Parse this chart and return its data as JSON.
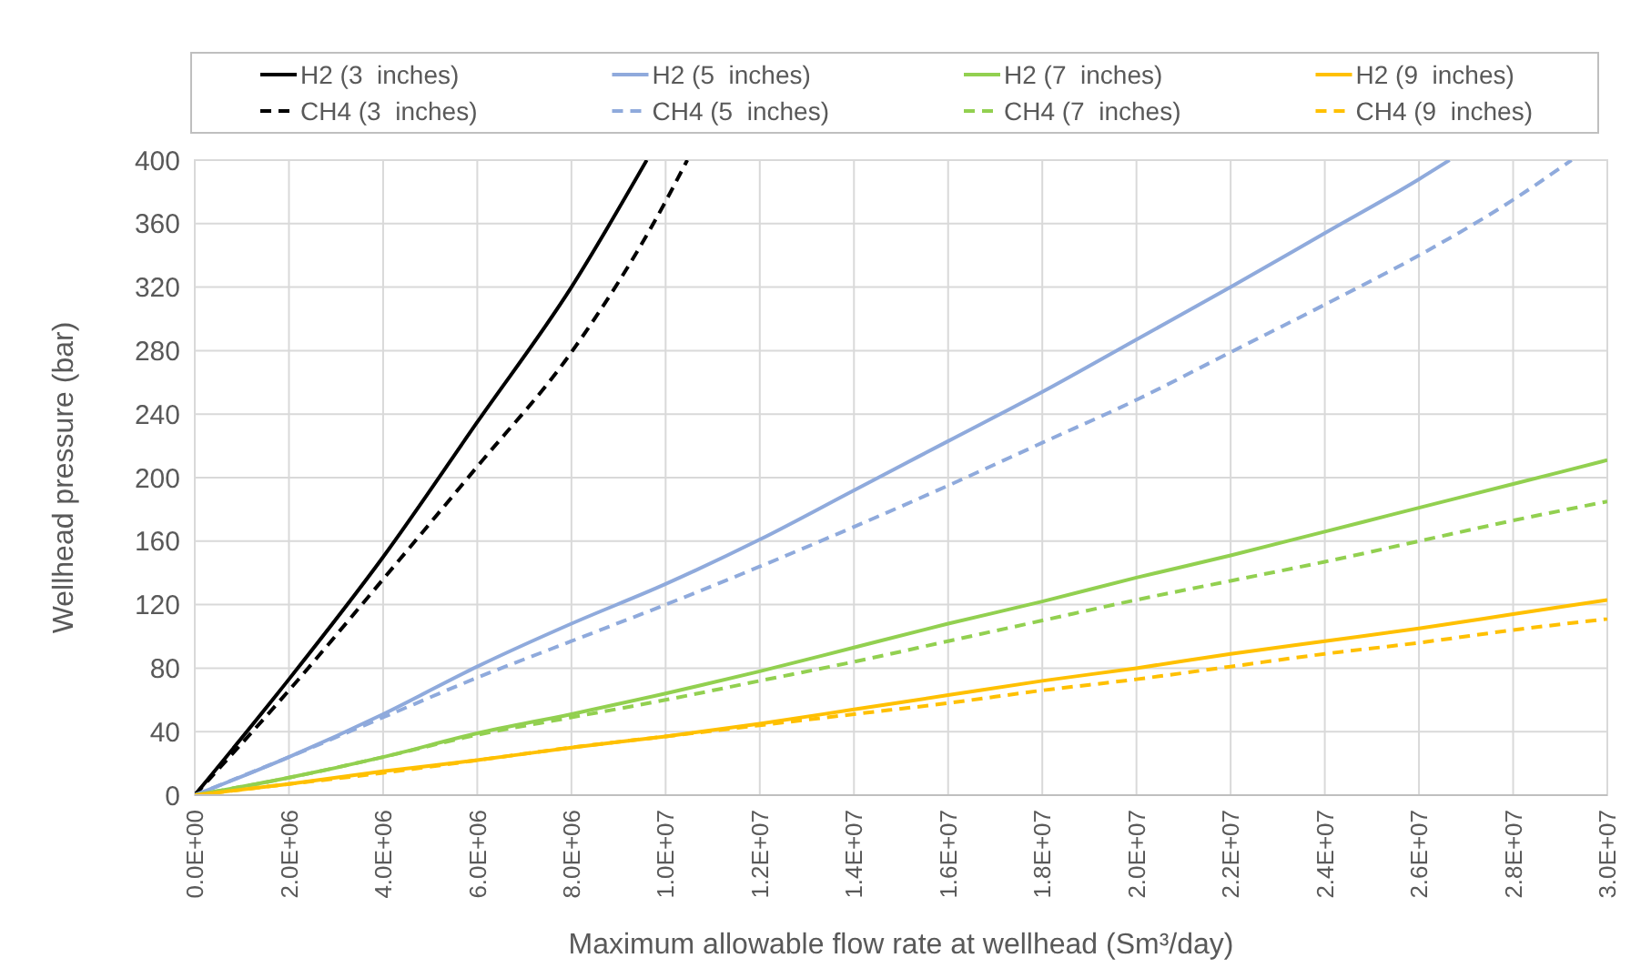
{
  "chart_data": {
    "type": "line",
    "xlabel": "Maximum allowable flow rate at wellhead (Sm³/day)",
    "ylabel": "Wellhead pressure (bar)",
    "xlim": [
      0,
      30000000
    ],
    "ylim": [
      0,
      400
    ],
    "xticks": [
      {
        "value": 0,
        "label": "0.0E+00"
      },
      {
        "value": 2000000,
        "label": "2.0E+06"
      },
      {
        "value": 4000000,
        "label": "4.0E+06"
      },
      {
        "value": 6000000,
        "label": "6.0E+06"
      },
      {
        "value": 8000000,
        "label": "8.0E+06"
      },
      {
        "value": 10000000,
        "label": "1.0E+07"
      },
      {
        "value": 12000000,
        "label": "1.2E+07"
      },
      {
        "value": 14000000,
        "label": "1.4E+07"
      },
      {
        "value": 16000000,
        "label": "1.6E+07"
      },
      {
        "value": 18000000,
        "label": "1.8E+07"
      },
      {
        "value": 20000000,
        "label": "2.0E+07"
      },
      {
        "value": 22000000,
        "label": "2.2E+07"
      },
      {
        "value": 24000000,
        "label": "2.4E+07"
      },
      {
        "value": 26000000,
        "label": "2.6E+07"
      },
      {
        "value": 28000000,
        "label": "2.8E+07"
      },
      {
        "value": 30000000,
        "label": "3.0E+07"
      }
    ],
    "yticks": [
      0,
      40,
      80,
      120,
      160,
      200,
      240,
      280,
      320,
      360,
      400
    ],
    "grid": true,
    "legend": "top",
    "series": [
      {
        "name": "H2 (3  inches)",
        "color": "#000000",
        "line_style": "solid",
        "x": [
          0,
          2000000,
          4000000,
          6000000,
          8000000,
          9600000
        ],
        "values": [
          0,
          73,
          150,
          235,
          320,
          400
        ]
      },
      {
        "name": "H2 (5  inches)",
        "color": "#8faadc",
        "line_style": "solid",
        "x": [
          0,
          2000000,
          4000000,
          6000000,
          8000000,
          10000000,
          12000000,
          14000000,
          16000000,
          18000000,
          20000000,
          22000000,
          24000000,
          26000000,
          26650000
        ],
        "values": [
          0,
          24,
          51,
          81,
          108,
          133,
          161,
          192,
          223,
          254,
          287,
          320,
          354,
          388,
          400
        ]
      },
      {
        "name": "H2 (7  inches)",
        "color": "#92d050",
        "line_style": "solid",
        "x": [
          0,
          2000000,
          4000000,
          6000000,
          8000000,
          10000000,
          12000000,
          14000000,
          16000000,
          18000000,
          20000000,
          22000000,
          24000000,
          26000000,
          28000000,
          30000000
        ],
        "values": [
          0,
          11,
          24,
          39,
          51,
          64,
          78,
          93,
          108,
          122,
          137,
          151,
          166,
          181,
          196,
          211
        ]
      },
      {
        "name": "H2 (9  inches)",
        "color": "#ffc000",
        "line_style": "solid",
        "x": [
          0,
          2000000,
          4000000,
          6000000,
          8000000,
          10000000,
          12000000,
          14000000,
          16000000,
          18000000,
          20000000,
          22000000,
          24000000,
          26000000,
          28000000,
          30000000
        ],
        "values": [
          0,
          7,
          15,
          22,
          30,
          37,
          45,
          54,
          63,
          72,
          80,
          89,
          97,
          105,
          114,
          123
        ]
      },
      {
        "name": "CH4 (3  inches)",
        "color": "#000000",
        "line_style": "dashed",
        "x": [
          0,
          2000000,
          4000000,
          6000000,
          8000000,
          10000000,
          10460000
        ],
        "values": [
          0,
          66,
          136,
          207,
          279,
          374,
          400
        ]
      },
      {
        "name": "CH4 (5  inches)",
        "color": "#8faadc",
        "line_style": "dashed",
        "x": [
          0,
          2000000,
          4000000,
          6000000,
          8000000,
          10000000,
          12000000,
          14000000,
          16000000,
          18000000,
          20000000,
          22000000,
          24000000,
          26000000,
          28000000,
          29240000
        ],
        "values": [
          0,
          24,
          49,
          74,
          97,
          120,
          144,
          169,
          195,
          222,
          249,
          279,
          309,
          340,
          375,
          400
        ]
      },
      {
        "name": "CH4 (7  inches)",
        "color": "#92d050",
        "line_style": "dashed",
        "x": [
          0,
          2000000,
          4000000,
          6000000,
          8000000,
          10000000,
          12000000,
          14000000,
          16000000,
          18000000,
          20000000,
          22000000,
          24000000,
          26000000,
          28000000,
          30000000
        ],
        "values": [
          0,
          11,
          24,
          38,
          49,
          60,
          72,
          84,
          97,
          110,
          123,
          135,
          147,
          160,
          173,
          185
        ]
      },
      {
        "name": "CH4 (9  inches)",
        "color": "#ffc000",
        "line_style": "dashed",
        "x": [
          0,
          2000000,
          4000000,
          6000000,
          8000000,
          10000000,
          12000000,
          14000000,
          16000000,
          18000000,
          20000000,
          22000000,
          24000000,
          26000000,
          28000000,
          30000000
        ],
        "values": [
          0,
          7,
          14,
          22,
          30,
          37,
          44,
          51,
          58,
          66,
          73,
          81,
          89,
          96,
          104,
          111
        ]
      }
    ]
  }
}
